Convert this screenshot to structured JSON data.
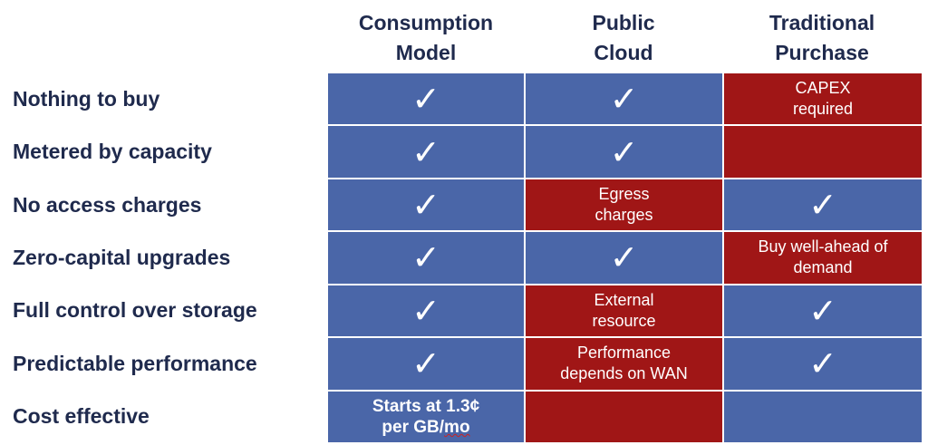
{
  "columns": [
    {
      "lines": [
        "Consumption",
        "Model"
      ]
    },
    {
      "lines": [
        "Public",
        "Cloud"
      ]
    },
    {
      "lines": [
        "Traditional",
        "Purchase"
      ]
    }
  ],
  "check_glyph": "✓",
  "rows": [
    {
      "label": "Nothing to buy",
      "cells": [
        {
          "color": "blue",
          "check": true
        },
        {
          "color": "blue",
          "check": true
        },
        {
          "color": "red",
          "lines": [
            "CAPEX",
            "required"
          ]
        }
      ]
    },
    {
      "label": "Metered by capacity",
      "cells": [
        {
          "color": "blue",
          "check": true
        },
        {
          "color": "blue",
          "check": true
        },
        {
          "color": "red"
        }
      ]
    },
    {
      "label": "No access charges",
      "cells": [
        {
          "color": "blue",
          "check": true
        },
        {
          "color": "red",
          "lines": [
            "Egress",
            "charges"
          ]
        },
        {
          "color": "blue",
          "check": true
        }
      ]
    },
    {
      "label": "Zero-capital upgrades",
      "cells": [
        {
          "color": "blue",
          "check": true
        },
        {
          "color": "blue",
          "check": true
        },
        {
          "color": "red",
          "lines": [
            "Buy well-ahead of",
            "demand"
          ]
        }
      ]
    },
    {
      "label": "Full control over storage",
      "cells": [
        {
          "color": "blue",
          "check": true
        },
        {
          "color": "red",
          "lines": [
            "External",
            "resource"
          ]
        },
        {
          "color": "blue",
          "check": true
        }
      ]
    },
    {
      "label": "Predictable performance",
      "cells": [
        {
          "color": "blue",
          "check": true
        },
        {
          "color": "red",
          "lines": [
            "Performance",
            "depends on WAN"
          ]
        },
        {
          "color": "blue",
          "check": true
        }
      ]
    },
    {
      "label": "Cost effective",
      "cells": [
        {
          "color": "blue",
          "bold": true,
          "lines": [
            "Starts at 1.3¢",
            "per GB/mo"
          ]
        },
        {
          "color": "red"
        },
        {
          "color": "blue"
        }
      ]
    }
  ],
  "colors": {
    "blue": "#4a66a8",
    "red": "#a01616",
    "text": "#1f2a4d"
  }
}
